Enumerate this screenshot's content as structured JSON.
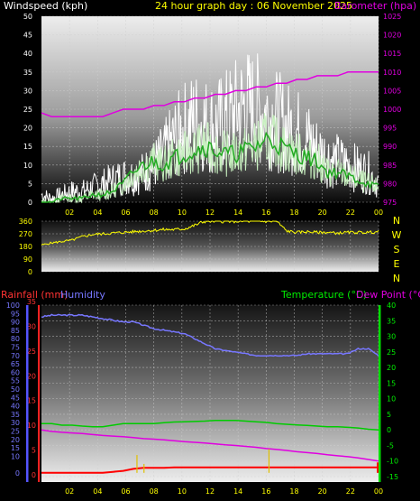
{
  "header": {
    "title": "24 hour graph day : 06 November 2025",
    "wind_label": "Windspeed (kph)",
    "baro_label": "Barometer (hpa)"
  },
  "colors": {
    "wind_gust": "#ffffff",
    "wind_avg_light": "#c8f0c0",
    "wind_avg": "#22aa22",
    "barometer": "#e000e0",
    "direction": "#ffff00",
    "rain": "#ff0000",
    "rain_rate": "#e0c000",
    "humidity": "#7777ff",
    "temperature": "#00cc00",
    "dewpoint": "#e000e0",
    "title": "#ffff00"
  },
  "lower": {
    "rain_label": "Rainfall (mm)",
    "humidity_label": "Humidity",
    "temp_label": "Temperature (°C)",
    "dew_label": "Dew Point (°C)"
  },
  "chart_data": [
    {
      "type": "line",
      "x_ticks": [
        "02",
        "04",
        "06",
        "08",
        "10",
        "12",
        "14",
        "16",
        "18",
        "20",
        "22",
        "00"
      ],
      "y_left": {
        "min": 0,
        "max": 50,
        "ticks": [
          "0",
          "5",
          "10",
          "15",
          "20",
          "25",
          "30",
          "35",
          "40",
          "45",
          "50"
        ]
      },
      "y_right": {
        "min": 975,
        "max": 1025,
        "ticks": [
          "975",
          "980",
          "985",
          "990",
          "995",
          "1000",
          "1005",
          "1010",
          "1015",
          "1020",
          "1025"
        ]
      },
      "series": [
        {
          "name": "Windspeed (kph)",
          "axis": "left",
          "kind": "gust",
          "values": [
            2,
            1,
            2,
            3,
            3,
            4,
            5,
            6,
            7,
            7,
            8,
            10,
            13,
            17,
            20,
            22,
            21,
            20,
            22,
            24,
            26,
            25,
            24,
            22,
            20,
            19,
            17,
            14,
            12,
            11,
            10,
            9,
            8,
            5
          ]
        },
        {
          "name": "Windspeed (kph)",
          "axis": "left",
          "kind": "avg",
          "values": [
            0,
            0,
            1,
            1,
            1,
            2,
            2,
            3,
            5,
            8,
            10,
            11,
            10,
            12,
            13,
            14,
            15,
            14,
            13,
            13,
            14,
            15,
            17,
            16,
            14,
            13,
            12,
            11,
            8,
            8,
            7,
            6,
            5,
            4
          ]
        },
        {
          "name": "Barometer (hpa)",
          "axis": "right",
          "values": [
            999,
            998,
            998,
            998,
            998,
            998,
            998,
            999,
            1000,
            1000,
            1000,
            1001,
            1001,
            1002,
            1002,
            1003,
            1003,
            1004,
            1004,
            1005,
            1005,
            1006,
            1006,
            1007,
            1007,
            1008,
            1008,
            1009,
            1009,
            1009,
            1010,
            1010,
            1010,
            1010
          ]
        }
      ]
    },
    {
      "type": "line",
      "y_left": {
        "min": 0,
        "max": 360,
        "ticks": [
          "0",
          "90",
          "180",
          "270",
          "360"
        ]
      },
      "compass": [
        "N",
        "W",
        "S",
        "E",
        "N"
      ],
      "series": [
        {
          "name": "Wind direction",
          "values": [
            190,
            205,
            215,
            225,
            250,
            265,
            270,
            275,
            280,
            285,
            290,
            295,
            300,
            300,
            305,
            330,
            360,
            360,
            360,
            360,
            360,
            360,
            360,
            360,
            290,
            280,
            285,
            280,
            280,
            275,
            280,
            280,
            280,
            285
          ]
        }
      ]
    },
    {
      "type": "line",
      "y_hum": {
        "min": 0,
        "max": 100,
        "ticks": [
          "0",
          "10",
          "15",
          "20",
          "25",
          "30",
          "35",
          "40",
          "45",
          "50",
          "55",
          "60",
          "65",
          "70",
          "75",
          "80",
          "85",
          "90",
          "95",
          "100"
        ]
      },
      "y_rain": {
        "min": 0,
        "max": 35,
        "ticks": [
          "0",
          "5",
          "10",
          "15",
          "20",
          "25",
          "30",
          "35"
        ]
      },
      "y_temp": {
        "min": -15,
        "max": 40,
        "ticks": [
          "-15",
          "-10",
          "-5",
          "0",
          "5",
          "10",
          "15",
          "20",
          "25",
          "30",
          "35",
          "40"
        ]
      },
      "x_ticks": [
        "02",
        "04",
        "06",
        "08",
        "10",
        "12",
        "14",
        "16",
        "18",
        "20",
        "22",
        "00"
      ],
      "series": [
        {
          "name": "Humidity",
          "axis": "hum",
          "values": [
            93,
            94,
            94,
            94,
            94,
            93,
            92,
            91,
            90,
            90,
            88,
            86,
            85,
            84,
            83,
            80,
            77,
            74,
            73,
            72,
            71,
            70,
            70,
            70,
            70,
            70,
            71,
            71,
            71,
            71,
            71,
            74,
            74,
            70
          ]
        },
        {
          "name": "Rainfall (mm)",
          "axis": "rain",
          "values": [
            0.4,
            0.4,
            0.4,
            0.4,
            0.4,
            0.4,
            0.4,
            0.6,
            0.8,
            1.2,
            1.4,
            1.4,
            1.4,
            1.5,
            1.5,
            1.5,
            1.5,
            1.5,
            1.5,
            1.5,
            1.5,
            1.5,
            1.5,
            1.5,
            1.5,
            1.5,
            1.5,
            1.5,
            1.5,
            1.5,
            1.5,
            1.5,
            1.5,
            1.5
          ]
        },
        {
          "name": "Temperature (°C)",
          "axis": "temp",
          "values": [
            2,
            2,
            1.5,
            1.5,
            1.2,
            1,
            1,
            1.5,
            2,
            2,
            2,
            2,
            2.3,
            2.5,
            2.6,
            2.7,
            2.8,
            3,
            3,
            3,
            2.8,
            2.6,
            2.4,
            2,
            1.8,
            1.6,
            1.4,
            1.2,
            1,
            1,
            0.8,
            0.6,
            0.2,
            0
          ]
        },
        {
          "name": "Dew Point (°C)",
          "axis": "temp",
          "values": [
            0,
            -0.5,
            -0.8,
            -1,
            -1.2,
            -1.5,
            -1.8,
            -2,
            -2.2,
            -2.5,
            -2.8,
            -3,
            -3.2,
            -3.5,
            -3.8,
            -4,
            -4.2,
            -4.5,
            -4.8,
            -5,
            -5.3,
            -5.6,
            -6,
            -6.3,
            -6.6,
            -7,
            -7.3,
            -7.6,
            -8,
            -8.3,
            -8.6,
            -9,
            -9.5,
            -10
          ]
        }
      ]
    }
  ]
}
